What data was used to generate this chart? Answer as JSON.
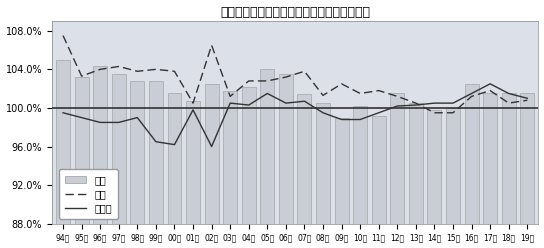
{
  "title": "「売上高」「客数」「客単価」の伸び率推移",
  "years": [
    "94年",
    "95年",
    "96年",
    "97年",
    "98年",
    "99年",
    "00年",
    "01年",
    "02年",
    "03年",
    "04年",
    "05年",
    "06年",
    "07年",
    "08年",
    "09年",
    "10年",
    "11年",
    "12年",
    "13年",
    "14年",
    "15年",
    "16年",
    "17年",
    "18年",
    "19年"
  ],
  "uriage": [
    105.0,
    103.2,
    104.3,
    103.5,
    102.8,
    102.8,
    101.5,
    100.7,
    102.5,
    101.8,
    102.2,
    104.0,
    103.5,
    101.4,
    100.5,
    99.0,
    100.2,
    99.2,
    101.5,
    100.5,
    99.8,
    100.0,
    102.5,
    101.5,
    101.5,
    101.5
  ],
  "kyakusu": [
    107.5,
    103.3,
    104.0,
    104.3,
    103.8,
    104.0,
    103.8,
    100.5,
    106.5,
    101.2,
    102.8,
    102.8,
    103.2,
    103.8,
    101.3,
    102.5,
    101.5,
    101.8,
    101.2,
    100.5,
    99.5,
    99.5,
    101.2,
    101.8,
    100.5,
    100.8
  ],
  "kyakutanka": [
    99.5,
    99.0,
    98.5,
    98.5,
    99.0,
    96.5,
    96.2,
    99.8,
    96.0,
    100.5,
    100.3,
    101.5,
    100.5,
    100.7,
    99.5,
    98.8,
    98.8,
    99.5,
    100.2,
    100.3,
    100.5,
    100.5,
    101.5,
    102.5,
    101.5,
    101.0
  ],
  "ylim": [
    88.0,
    109.0
  ],
  "yticks": [
    88.0,
    92.0,
    96.0,
    100.0,
    104.0,
    108.0
  ],
  "bar_color": "#c8cdd6",
  "bar_edge_color": "#999999",
  "line_color": "#333333",
  "legend_labels": [
    "売上",
    "客数",
    "客単価"
  ],
  "background_color": "#dce0e8",
  "plot_bg_color": "#dce0e8",
  "ref_line_color": "#333333"
}
